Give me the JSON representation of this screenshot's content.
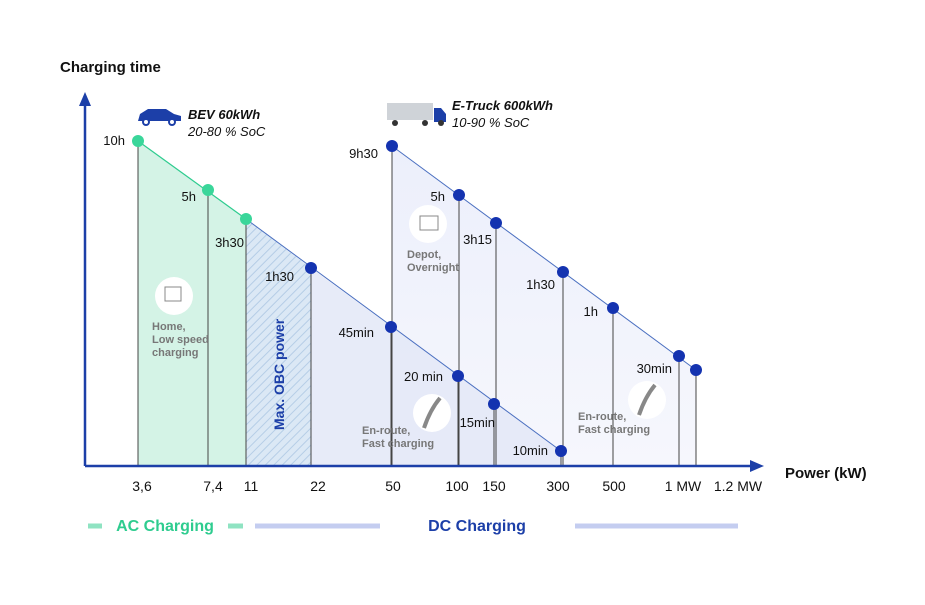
{
  "axis": {
    "y_label": "Charging time",
    "x_label": "Power (kW)"
  },
  "x_ticks": [
    "3,6",
    "7,4",
    "11",
    "22",
    "50",
    "100",
    "150",
    "300",
    "500",
    "1 MW",
    "1.2 MW"
  ],
  "bev": {
    "title": "BEV 60kWh",
    "subtitle": "20-80 % SoC",
    "time_labels": [
      "10h",
      "5h",
      "3h30",
      "1h30",
      "45min",
      "20 min",
      "15min",
      "10min"
    ]
  },
  "truck": {
    "title": "E-Truck 600kWh",
    "subtitle": "10-90 % SoC",
    "time_labels": [
      "9h30",
      "5h",
      "3h15",
      "1h30",
      "1h",
      "30min"
    ]
  },
  "annotations": {
    "home": [
      "Home,",
      "Low speed",
      "charging"
    ],
    "obc": "Max. OBC power",
    "depot": [
      "Depot,",
      "Overnight"
    ],
    "enroute_bev": [
      "En-route,",
      "Fast charging"
    ],
    "enroute_truck": [
      "En-route,",
      "Fast charging"
    ]
  },
  "legend": {
    "ac": "AC Charging",
    "dc": "DC Charging"
  }
}
